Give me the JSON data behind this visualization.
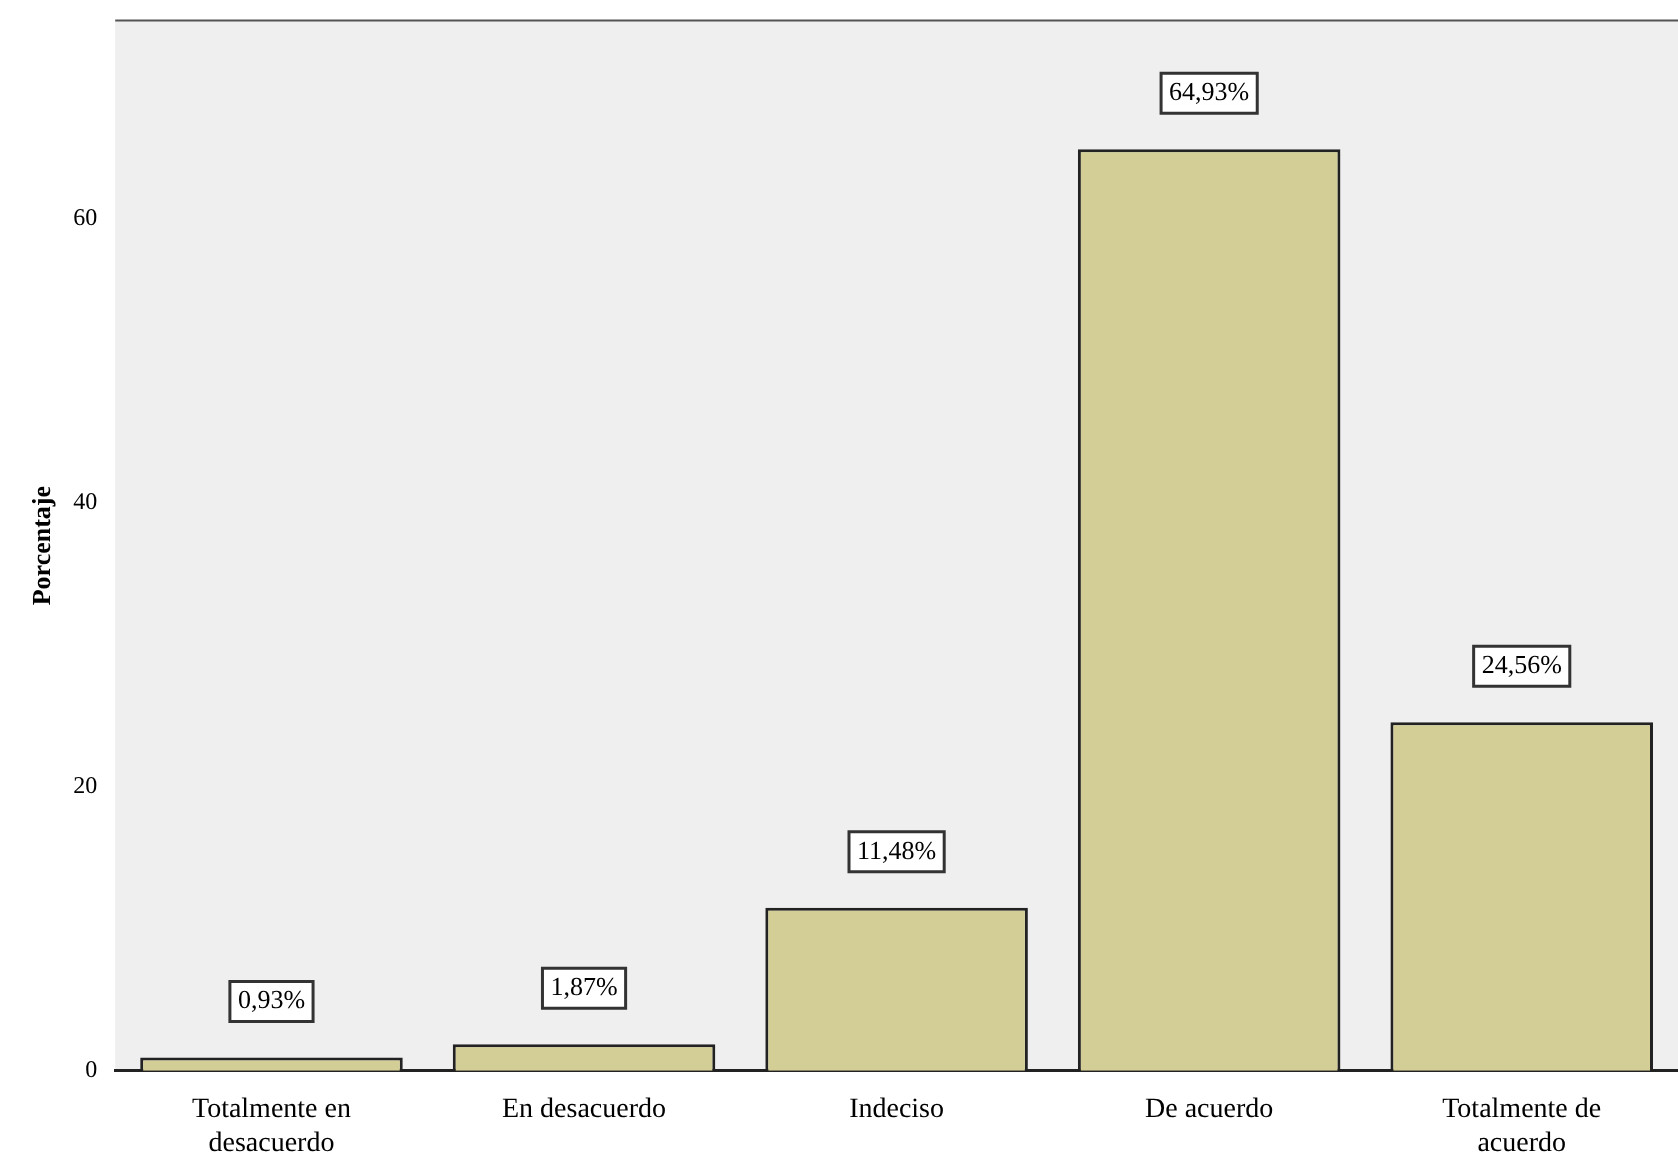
{
  "chart_data": {
    "type": "bar",
    "ylabel": "Porcentaje",
    "categories": [
      "Totalmente en desacuerdo",
      "En desacuerdo",
      "Indeciso",
      "De acuerdo",
      "Totalmente de acuerdo"
    ],
    "values": [
      0.93,
      1.87,
      11.48,
      64.93,
      24.56
    ],
    "value_labels": [
      "0,93%",
      "1,87%",
      "11,48%",
      "64,93%",
      "24,56%"
    ],
    "color": "#d2ce96",
    "ylim": [
      0,
      74
    ],
    "yticks": [
      0,
      20,
      40,
      60
    ],
    "grid": false,
    "legend": false
  }
}
